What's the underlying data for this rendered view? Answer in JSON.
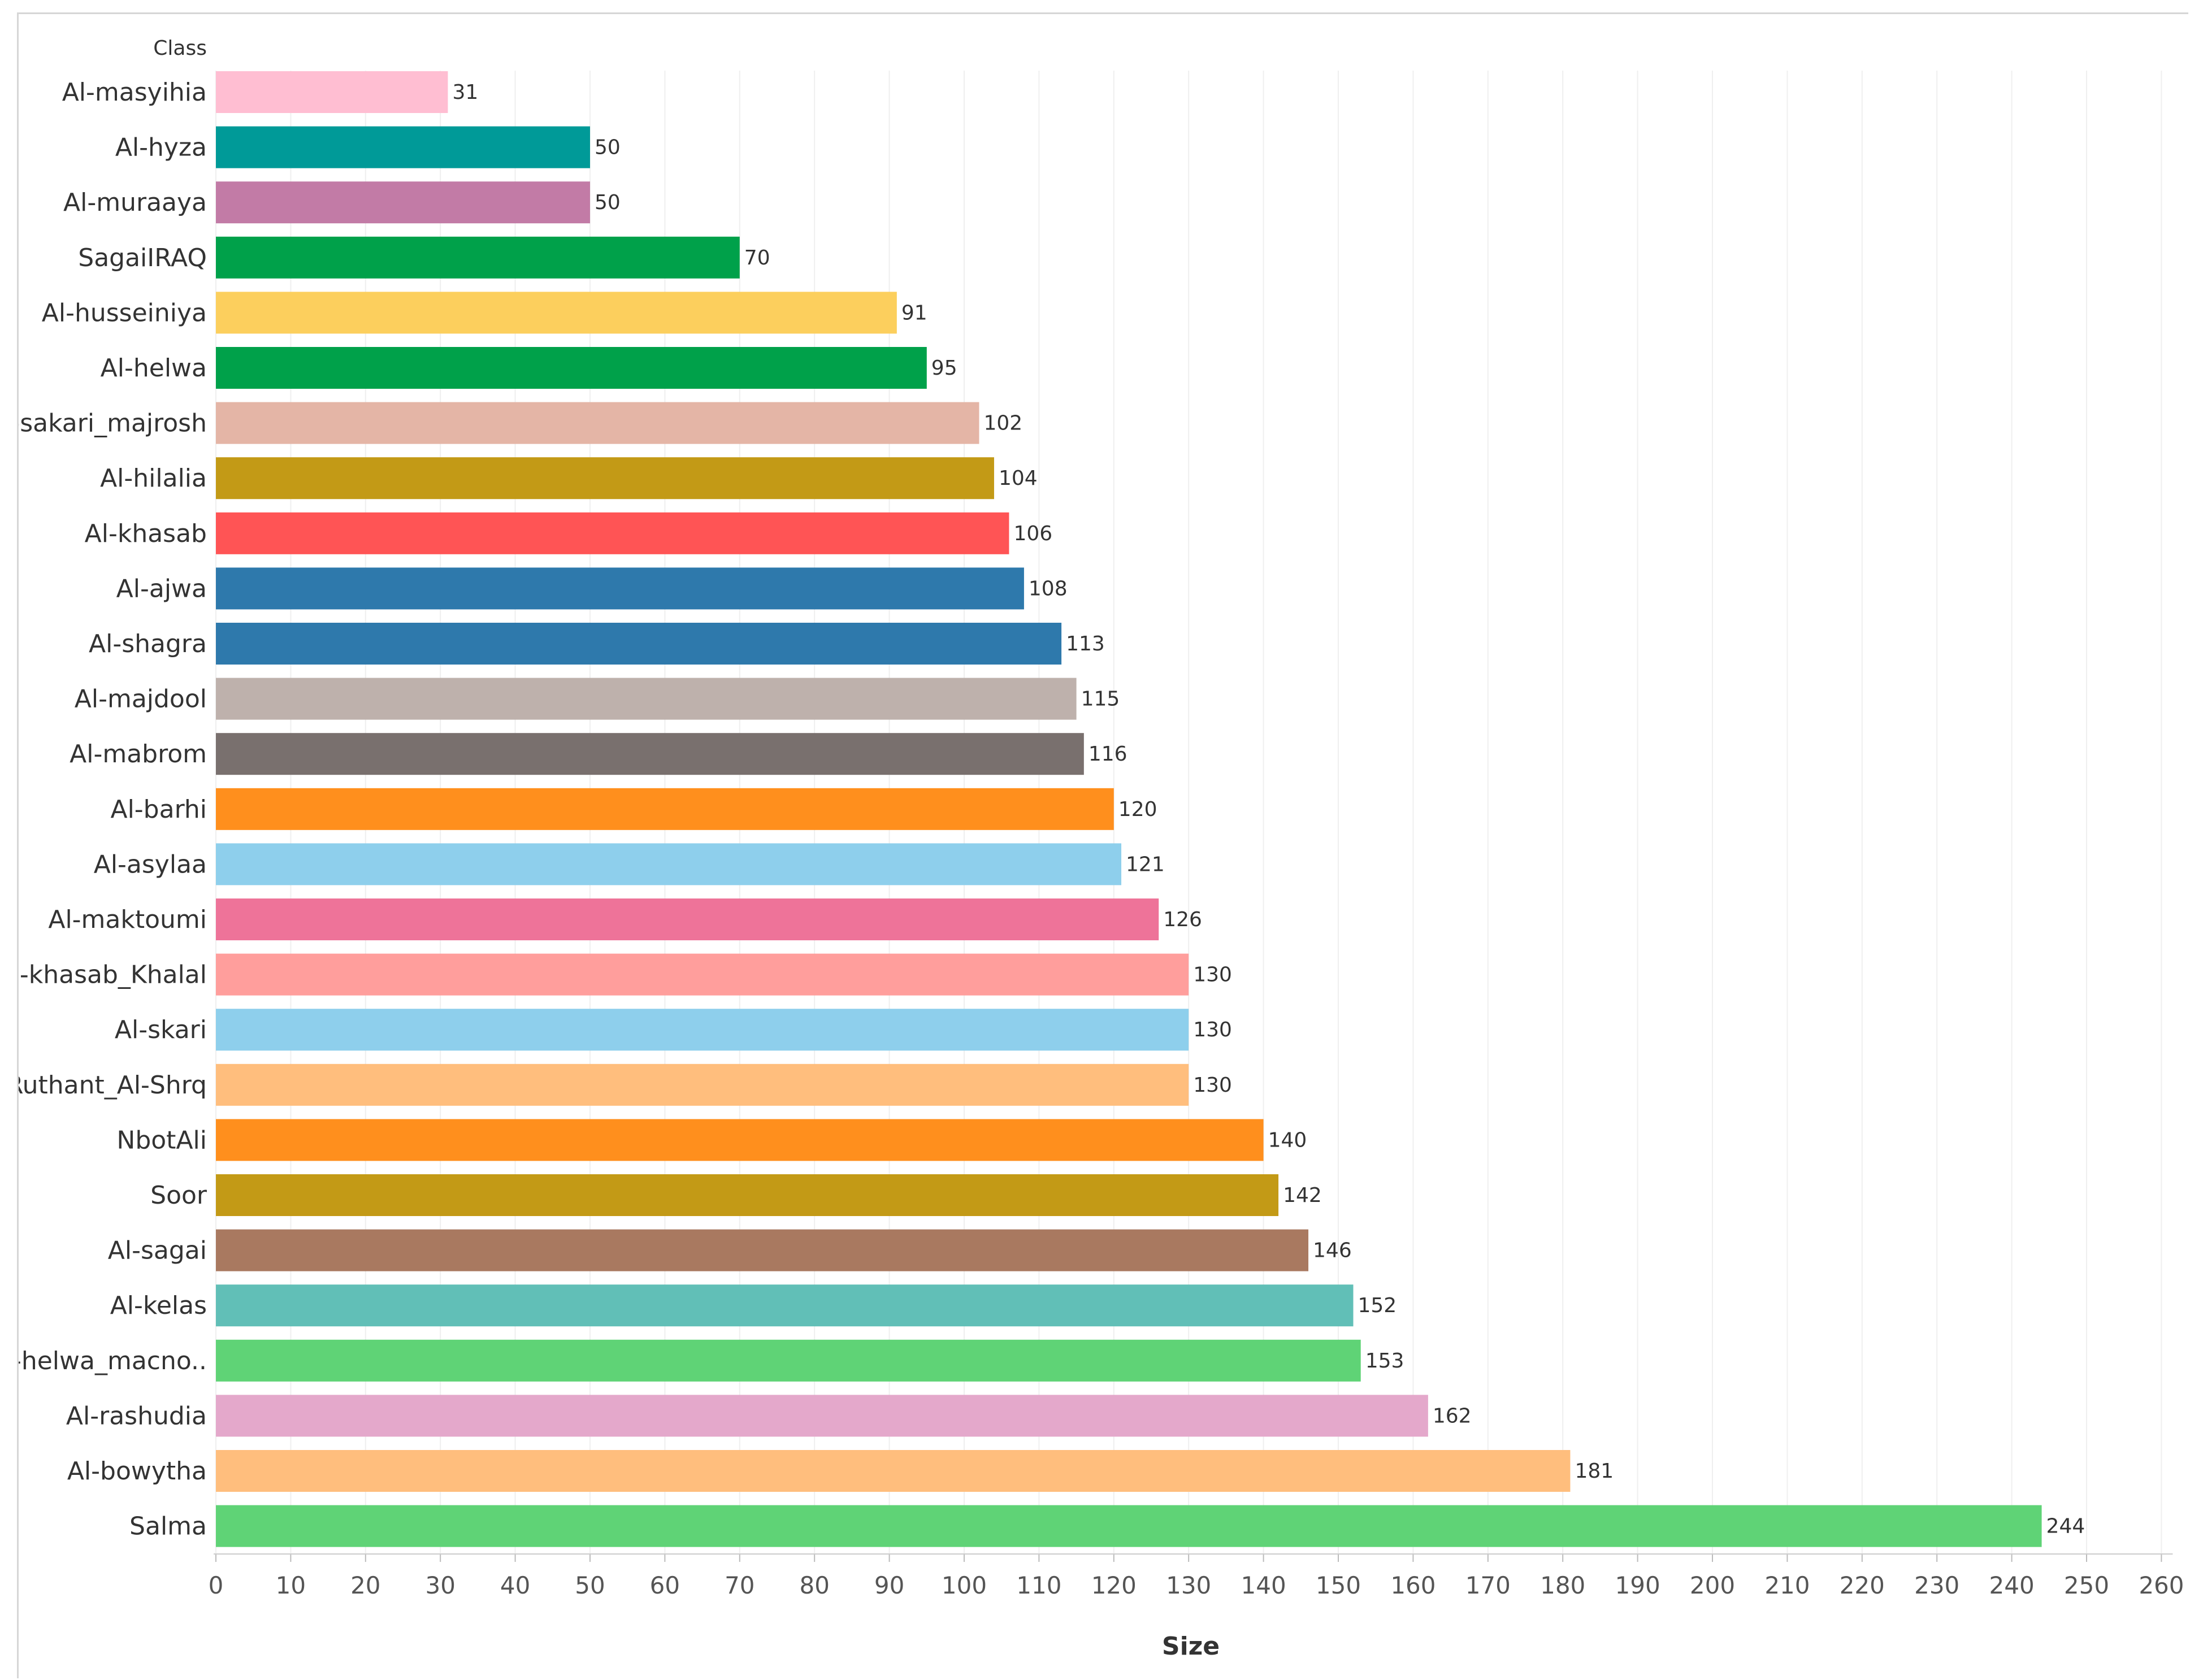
{
  "chart_data": {
    "type": "bar",
    "orientation": "horizontal",
    "row_header": "Class",
    "xlabel": "Size",
    "ylabel": "",
    "xlim": [
      0,
      260
    ],
    "x_ticks": [
      0,
      10,
      20,
      30,
      40,
      50,
      60,
      70,
      80,
      90,
      100,
      110,
      120,
      130,
      140,
      150,
      160,
      170,
      180,
      190,
      200,
      210,
      220,
      230,
      240,
      250,
      260
    ],
    "grid": "vertical",
    "categories": [
      "Al-masyihia",
      "Al-hyza",
      "Al-muraaya",
      "SagaiIRAQ",
      "Al-husseiniya",
      "Al-helwa",
      "Al-sakari_majrosh",
      "Al-hilalia",
      "Al-khasab",
      "Al-ajwa",
      "Al-shagra",
      "Al-majdool",
      "Al-mabrom",
      "Al-barhi",
      "Al-asylaa",
      "Al-maktoumi",
      "Al-khasab_Khalal",
      "Al-skari",
      "Ruthant_Al-Shrq",
      "NbotAli",
      "Soor",
      "Al-sagai",
      "Al-kelas",
      "Al-helwa_macno..",
      "Al-rashudia",
      "Al-bowytha",
      "Salma"
    ],
    "values": [
      31,
      50,
      50,
      70,
      91,
      95,
      102,
      104,
      106,
      108,
      113,
      115,
      116,
      120,
      121,
      126,
      130,
      130,
      130,
      140,
      142,
      146,
      152,
      153,
      162,
      181,
      244
    ],
    "colors": [
      "#ffbed2",
      "#009a98",
      "#c27ba6",
      "#00a14a",
      "#fccf5d",
      "#00a14a",
      "#e4b5a6",
      "#c39a16",
      "#ff5455",
      "#2e79ac",
      "#2e79ac",
      "#beb1ac",
      "#79706e",
      "#ff8f1d",
      "#8ecfec",
      "#ee7399",
      "#ff9e9c",
      "#8ecfec",
      "#ffbe7d",
      "#ff8f1d",
      "#c39a16",
      "#a97960",
      "#61bfb7",
      "#5fd376",
      "#e4a8cb",
      "#ffbe7d",
      "#5fd376"
    ]
  }
}
